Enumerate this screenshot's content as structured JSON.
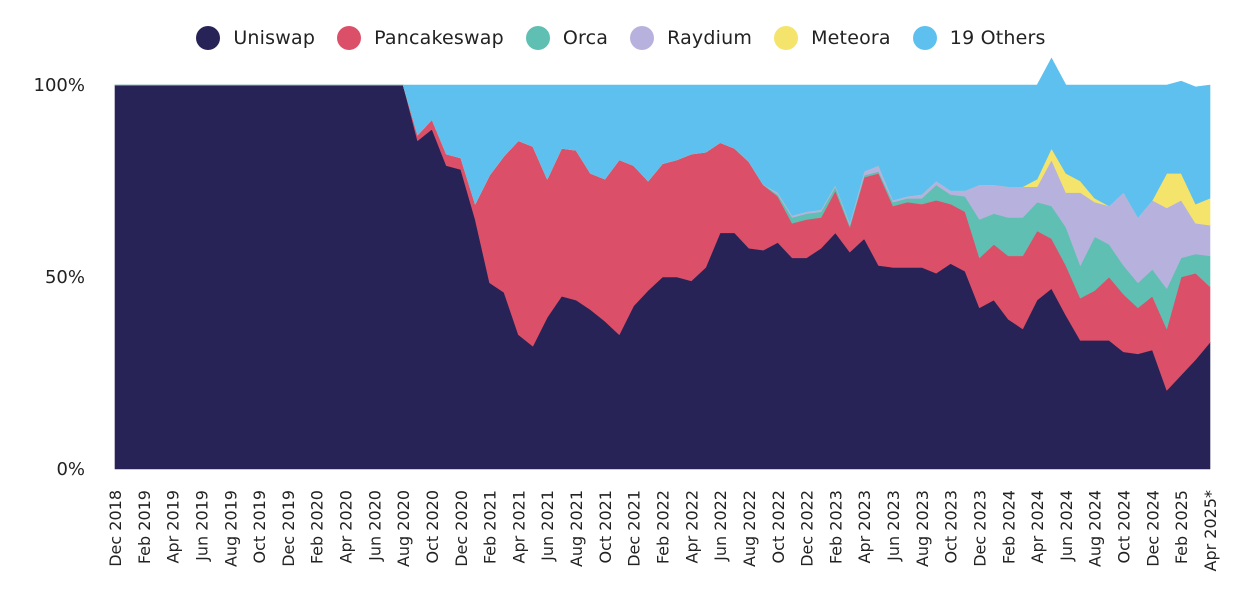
{
  "chart_data": {
    "type": "area",
    "stacked": true,
    "normalized": true,
    "title": "",
    "xlabel": "",
    "ylabel": "",
    "ylim": [
      0,
      100
    ],
    "legend_position": "top-center",
    "grid": false,
    "y_ticks": [
      "0%",
      "50%",
      "100%"
    ],
    "x_tick_labels": [
      "Dec 2018",
      "Feb 2019",
      "Apr 2019",
      "Jun 2019",
      "Aug 2019",
      "Oct 2019",
      "Dec 2019",
      "Feb 2020",
      "Apr 2020",
      "Jun 2020",
      "Aug 2020",
      "Oct 2020",
      "Dec 2020",
      "Feb 2021",
      "Apr 2021",
      "Jun 2021",
      "Aug 2021",
      "Oct 2021",
      "Dec 2021",
      "Feb 2022",
      "Apr 2022",
      "Jun 2022",
      "Aug 2022",
      "Oct 2022",
      "Dec 2022",
      "Feb 2023",
      "Apr 2023",
      "Jun 2023",
      "Aug 2023",
      "Oct 2023",
      "Dec 2023",
      "Feb 2024",
      "Apr 2024",
      "Jun 2024",
      "Aug 2024",
      "Oct 2024",
      "Dec 2024",
      "Feb 2025",
      "Apr 2025*"
    ],
    "x": [
      "Dec 2018",
      "Jan 2019",
      "Feb 2019",
      "Mar 2019",
      "Apr 2019",
      "May 2019",
      "Jun 2019",
      "Jul 2019",
      "Aug 2019",
      "Sep 2019",
      "Oct 2019",
      "Nov 2019",
      "Dec 2019",
      "Jan 2020",
      "Feb 2020",
      "Mar 2020",
      "Apr 2020",
      "May 2020",
      "Jun 2020",
      "Jul 2020",
      "Aug 2020",
      "Sep 2020",
      "Oct 2020",
      "Nov 2020",
      "Dec 2020",
      "Jan 2021",
      "Feb 2021",
      "Mar 2021",
      "Apr 2021",
      "May 2021",
      "Jun 2021",
      "Jul 2021",
      "Aug 2021",
      "Sep 2021",
      "Oct 2021",
      "Nov 2021",
      "Dec 2021",
      "Jan 2022",
      "Feb 2022",
      "Mar 2022",
      "Apr 2022",
      "May 2022",
      "Jun 2022",
      "Jul 2022",
      "Aug 2022",
      "Sep 2022",
      "Oct 2022",
      "Nov 2022",
      "Dec 2022",
      "Jan 2023",
      "Feb 2023",
      "Mar 2023",
      "Apr 2023",
      "May 2023",
      "Jun 2023",
      "Jul 2023",
      "Aug 2023",
      "Sep 2023",
      "Oct 2023",
      "Nov 2023",
      "Dec 2023",
      "Jan 2024",
      "Feb 2024",
      "Mar 2024",
      "Apr 2024",
      "May 2024",
      "Jun 2024",
      "Jul 2024",
      "Aug 2024",
      "Sep 2024",
      "Oct 2024",
      "Nov 2024",
      "Dec 2024",
      "Jan 2025",
      "Feb 2025",
      "Mar 2025",
      "Apr 2025*"
    ],
    "series": [
      {
        "name": "Uniswap",
        "color": "#282357",
        "values": [
          100,
          100,
          100,
          100,
          100,
          100,
          100,
          100,
          100,
          100,
          100,
          100,
          100,
          100,
          100,
          100,
          100,
          100,
          100,
          100,
          100,
          85.5,
          88.5,
          79,
          78,
          65,
          48.5,
          46,
          35,
          32,
          39.5,
          45,
          44,
          41.5,
          38.5,
          35,
          42.5,
          46.5,
          50,
          50,
          49,
          52.5,
          61.5,
          61.5,
          57.5,
          57,
          59,
          55,
          55,
          57.5,
          61.5,
          56.5,
          60,
          53,
          52.5,
          52.5,
          52.5,
          51,
          53.5,
          51.5,
          42,
          44,
          39,
          36.5,
          44,
          47,
          40,
          33.5,
          33.5,
          33.5,
          30.5,
          30,
          31,
          20.5,
          24.5,
          28.5,
          33
        ]
      },
      {
        "name": "Pancakeswap",
        "color": "#DB5068",
        "values": [
          0,
          0,
          0,
          0,
          0,
          0,
          0,
          0,
          0,
          0,
          0,
          0,
          0,
          0,
          0,
          0,
          0,
          0,
          0,
          0,
          0,
          1.5,
          2.5,
          3,
          3,
          4,
          28,
          35.5,
          50.5,
          52,
          36,
          38.5,
          39,
          35.5,
          37,
          45.5,
          36.5,
          28.5,
          29.5,
          30.5,
          33,
          30,
          23.5,
          22,
          22.5,
          17,
          12,
          9,
          10,
          8,
          11,
          6.5,
          16,
          24,
          16,
          17,
          16.5,
          19,
          15.5,
          15.5,
          13,
          14.5,
          16.5,
          19,
          18,
          13,
          13,
          11,
          13,
          16.5,
          15,
          12,
          14,
          16,
          25.5,
          22.5,
          14.5
        ]
      },
      {
        "name": "Orca",
        "color": "#5FBFB3",
        "values": [
          0,
          0,
          0,
          0,
          0,
          0,
          0,
          0,
          0,
          0,
          0,
          0,
          0,
          0,
          0,
          0,
          0,
          0,
          0,
          0,
          0,
          0,
          0,
          0,
          0,
          0,
          0,
          0,
          0,
          0,
          0,
          0,
          0,
          0,
          0,
          0,
          0,
          0,
          0,
          0,
          0,
          0,
          0,
          0,
          0,
          0,
          0.5,
          1.5,
          1.5,
          1.5,
          1,
          0.5,
          0.5,
          0.5,
          1,
          1,
          1.5,
          4,
          2.5,
          4,
          10,
          8,
          10,
          10,
          7.5,
          8.5,
          10,
          8.5,
          14,
          8.5,
          7.5,
          6.5,
          7,
          10.5,
          5,
          5,
          8
        ]
      },
      {
        "name": "Raydium",
        "color": "#B7B2DD",
        "values": [
          0,
          0,
          0,
          0,
          0,
          0,
          0,
          0,
          0,
          0,
          0,
          0,
          0,
          0,
          0,
          0,
          0,
          0,
          0,
          0,
          0,
          0,
          0,
          0,
          0,
          0,
          0,
          0,
          0,
          0,
          0,
          0,
          0,
          0,
          0,
          0,
          0,
          0,
          0,
          0,
          0,
          0,
          0,
          0,
          0,
          0,
          0.5,
          0.5,
          0.5,
          0.5,
          0.5,
          0.5,
          1,
          1.5,
          0.5,
          0.5,
          1,
          1,
          1,
          1.5,
          9,
          7.5,
          8,
          8,
          4,
          12,
          9,
          19,
          9,
          10,
          19,
          17,
          18,
          21,
          15,
          8,
          8
        ]
      },
      {
        "name": "Meteora",
        "color": "#F4E46B",
        "values": [
          0,
          0,
          0,
          0,
          0,
          0,
          0,
          0,
          0,
          0,
          0,
          0,
          0,
          0,
          0,
          0,
          0,
          0,
          0,
          0,
          0,
          0,
          0,
          0,
          0,
          0,
          0,
          0,
          0,
          0,
          0,
          0,
          0,
          0,
          0,
          0,
          0,
          0,
          0,
          0,
          0,
          0,
          0,
          0,
          0,
          0,
          0,
          0,
          0,
          0,
          0,
          0,
          0,
          0,
          0,
          0,
          0,
          0,
          0,
          0,
          0,
          0,
          0,
          0,
          2,
          3,
          5,
          3,
          1,
          0,
          0,
          0,
          0,
          9,
          7,
          5,
          7
        ]
      },
      {
        "name": "19 Others",
        "color": "#5EC0EE",
        "values": [
          0,
          0,
          0,
          0,
          0,
          0,
          0,
          0,
          0,
          0,
          0,
          0,
          0,
          0,
          0,
          0,
          0,
          0,
          0,
          0,
          0,
          13,
          9,
          18,
          19,
          31,
          23.5,
          18.5,
          14.5,
          16,
          24.5,
          16.5,
          17,
          23,
          24.5,
          19.5,
          21,
          25,
          20.5,
          19.5,
          18,
          17.5,
          15,
          16.5,
          20,
          26,
          28,
          34,
          33,
          32.5,
          26,
          36,
          22.5,
          21,
          30,
          29,
          28.5,
          25,
          27.5,
          27.5,
          26,
          26,
          26.5,
          26.5,
          24.5,
          23.5,
          23,
          25,
          29.5,
          31.5,
          28,
          34.5,
          30,
          23,
          24,
          30.5,
          29.5
        ]
      }
    ]
  }
}
